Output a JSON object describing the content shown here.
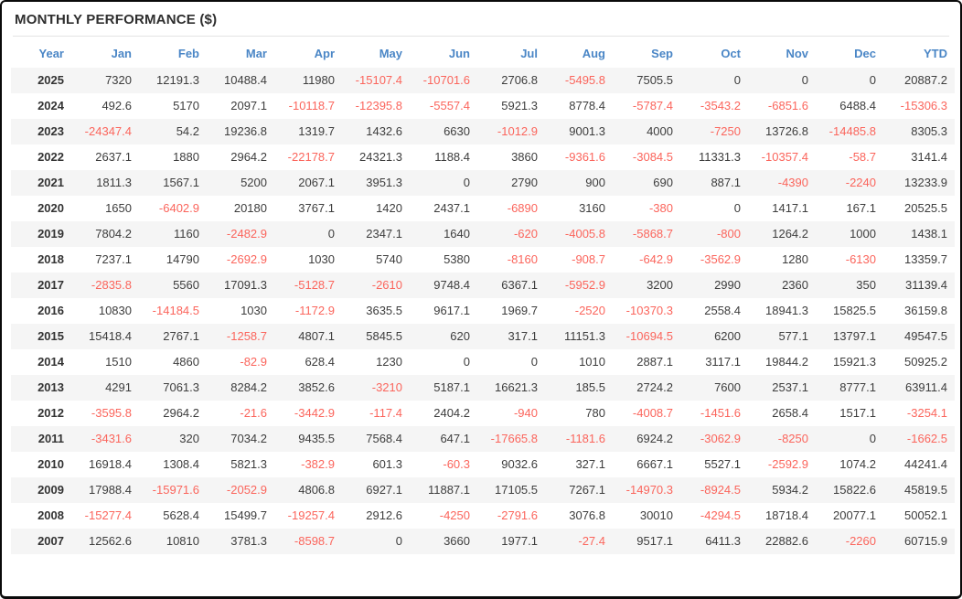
{
  "title": "MONTHLY PERFORMANCE ($)",
  "colors": {
    "header_text": "#4a86c6",
    "negative_value": "#fb655c",
    "positive_value": "#3d3d3d",
    "stripe_row": "#f5f5f5",
    "frame_border": "#0a0a0a",
    "title_text": "#2e2e2e"
  },
  "table": {
    "columns": [
      "Year",
      "Jan",
      "Feb",
      "Mar",
      "Apr",
      "May",
      "Jun",
      "Jul",
      "Aug",
      "Sep",
      "Oct",
      "Nov",
      "Dec",
      "YTD"
    ],
    "rows": [
      {
        "year": "2025",
        "values": [
          "7320",
          "12191.3",
          "10488.4",
          "11980",
          "-15107.4",
          "-10701.6",
          "2706.8",
          "-5495.8",
          "7505.5",
          "0",
          "0",
          "0",
          "20887.2"
        ]
      },
      {
        "year": "2024",
        "values": [
          "492.6",
          "5170",
          "2097.1",
          "-10118.7",
          "-12395.8",
          "-5557.4",
          "5921.3",
          "8778.4",
          "-5787.4",
          "-3543.2",
          "-6851.6",
          "6488.4",
          "-15306.3"
        ]
      },
      {
        "year": "2023",
        "values": [
          "-24347.4",
          "54.2",
          "19236.8",
          "1319.7",
          "1432.6",
          "6630",
          "-1012.9",
          "9001.3",
          "4000",
          "-7250",
          "13726.8",
          "-14485.8",
          "8305.3"
        ]
      },
      {
        "year": "2022",
        "values": [
          "2637.1",
          "1880",
          "2964.2",
          "-22178.7",
          "24321.3",
          "1188.4",
          "3860",
          "-9361.6",
          "-3084.5",
          "11331.3",
          "-10357.4",
          "-58.7",
          "3141.4"
        ]
      },
      {
        "year": "2021",
        "values": [
          "1811.3",
          "1567.1",
          "5200",
          "2067.1",
          "3951.3",
          "0",
          "2790",
          "900",
          "690",
          "887.1",
          "-4390",
          "-2240",
          "13233.9"
        ]
      },
      {
        "year": "2020",
        "values": [
          "1650",
          "-6402.9",
          "20180",
          "3767.1",
          "1420",
          "2437.1",
          "-6890",
          "3160",
          "-380",
          "0",
          "1417.1",
          "167.1",
          "20525.5"
        ]
      },
      {
        "year": "2019",
        "values": [
          "7804.2",
          "1160",
          "-2482.9",
          "0",
          "2347.1",
          "1640",
          "-620",
          "-4005.8",
          "-5868.7",
          "-800",
          "1264.2",
          "1000",
          "1438.1"
        ]
      },
      {
        "year": "2018",
        "values": [
          "7237.1",
          "14790",
          "-2692.9",
          "1030",
          "5740",
          "5380",
          "-8160",
          "-908.7",
          "-642.9",
          "-3562.9",
          "1280",
          "-6130",
          "13359.7"
        ]
      },
      {
        "year": "2017",
        "values": [
          "-2835.8",
          "5560",
          "17091.3",
          "-5128.7",
          "-2610",
          "9748.4",
          "6367.1",
          "-5952.9",
          "3200",
          "2990",
          "2360",
          "350",
          "31139.4"
        ]
      },
      {
        "year": "2016",
        "values": [
          "10830",
          "-14184.5",
          "1030",
          "-1172.9",
          "3635.5",
          "9617.1",
          "1969.7",
          "-2520",
          "-10370.3",
          "2558.4",
          "18941.3",
          "15825.5",
          "36159.8"
        ]
      },
      {
        "year": "2015",
        "values": [
          "15418.4",
          "2767.1",
          "-1258.7",
          "4807.1",
          "5845.5",
          "620",
          "317.1",
          "11151.3",
          "-10694.5",
          "6200",
          "577.1",
          "13797.1",
          "49547.5"
        ]
      },
      {
        "year": "2014",
        "values": [
          "1510",
          "4860",
          "-82.9",
          "628.4",
          "1230",
          "0",
          "0",
          "1010",
          "2887.1",
          "3117.1",
          "19844.2",
          "15921.3",
          "50925.2"
        ]
      },
      {
        "year": "2013",
        "values": [
          "4291",
          "7061.3",
          "8284.2",
          "3852.6",
          "-3210",
          "5187.1",
          "16621.3",
          "185.5",
          "2724.2",
          "7600",
          "2537.1",
          "8777.1",
          "63911.4"
        ]
      },
      {
        "year": "2012",
        "values": [
          "-3595.8",
          "2964.2",
          "-21.6",
          "-3442.9",
          "-117.4",
          "2404.2",
          "-940",
          "780",
          "-4008.7",
          "-1451.6",
          "2658.4",
          "1517.1",
          "-3254.1"
        ]
      },
      {
        "year": "2011",
        "values": [
          "-3431.6",
          "320",
          "7034.2",
          "9435.5",
          "7568.4",
          "647.1",
          "-17665.8",
          "-1181.6",
          "6924.2",
          "-3062.9",
          "-8250",
          "0",
          "-1662.5"
        ]
      },
      {
        "year": "2010",
        "values": [
          "16918.4",
          "1308.4",
          "5821.3",
          "-382.9",
          "601.3",
          "-60.3",
          "9032.6",
          "327.1",
          "6667.1",
          "5527.1",
          "-2592.9",
          "1074.2",
          "44241.4"
        ]
      },
      {
        "year": "2009",
        "values": [
          "17988.4",
          "-15971.6",
          "-2052.9",
          "4806.8",
          "6927.1",
          "11887.1",
          "17105.5",
          "7267.1",
          "-14970.3",
          "-8924.5",
          "5934.2",
          "15822.6",
          "45819.5"
        ]
      },
      {
        "year": "2008",
        "values": [
          "-15277.4",
          "5628.4",
          "15499.7",
          "-19257.4",
          "2912.6",
          "-4250",
          "-2791.6",
          "3076.8",
          "30010",
          "-4294.5",
          "18718.4",
          "20077.1",
          "50052.1"
        ]
      },
      {
        "year": "2007",
        "values": [
          "12562.6",
          "10810",
          "3781.3",
          "-8598.7",
          "0",
          "3660",
          "1977.1",
          "-27.4",
          "9517.1",
          "6411.3",
          "22882.6",
          "-2260",
          "60715.9"
        ]
      }
    ]
  }
}
